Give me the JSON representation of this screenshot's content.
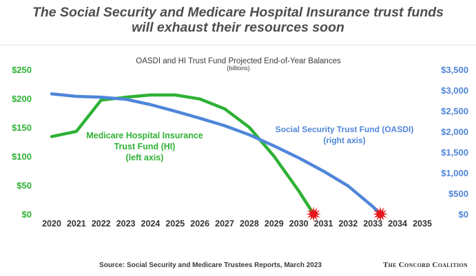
{
  "headline": {
    "line1": "The Social Security and Medicare Hospital Insurance trust funds",
    "line2": "will exhaust their resources soon"
  },
  "colors": {
    "hi": "#2eb135",
    "oasdi": "#4f86d9",
    "exhaustion_marker": "#e5171b",
    "text": "#3a3a3a"
  },
  "chart_data": {
    "type": "line",
    "title": "OASDI and HI Trust Fund Projected End-of-Year Balances",
    "subtitle": "(billions)",
    "x_ticks": [
      "2020",
      "2021",
      "2022",
      "2023",
      "2024",
      "2025",
      "2026",
      "2027",
      "2028",
      "2029",
      "2030",
      "2031",
      "2032",
      "2033",
      "2034",
      "2035"
    ],
    "xlim": [
      2020,
      2035
    ],
    "left_axis": {
      "ticks": [
        "$0",
        "$50",
        "$100",
        "$150",
        "$200",
        "$250"
      ],
      "ylim": [
        0,
        250
      ],
      "color": "#2eb135"
    },
    "right_axis": {
      "ticks": [
        "$0",
        "$500",
        "$1,000",
        "$1,500",
        "$2,000",
        "$2,500",
        "$3,000",
        "$3,500"
      ],
      "ylim": [
        0,
        3500
      ],
      "color": "#4f86d9"
    },
    "grid": false,
    "series": [
      {
        "name_lines": [
          "Medicare Hospital Insurance",
          "Trust Fund (HI)",
          "(left axis)"
        ],
        "axis": "left",
        "color": "#2eb135",
        "x": [
          2020,
          2021,
          2022,
          2023,
          2024,
          2025,
          2026,
          2027,
          2028,
          2029,
          2030,
          2030.6
        ],
        "y": [
          134,
          143,
          197,
          202,
          206,
          206,
          199,
          182,
          150,
          100,
          40,
          0
        ]
      },
      {
        "name_lines": [
          "Social Security Trust Fund (OASDI)",
          "(right axis)"
        ],
        "axis": "right",
        "color": "#4f86d9",
        "x": [
          2020,
          2021,
          2022,
          2023,
          2024,
          2025,
          2026,
          2027,
          2028,
          2029,
          2030,
          2031,
          2032,
          2033,
          2033.3
        ],
        "y": [
          2910,
          2850,
          2830,
          2780,
          2650,
          2490,
          2320,
          2140,
          1920,
          1650,
          1360,
          1040,
          680,
          180,
          0
        ]
      }
    ],
    "exhaustion_markers": [
      {
        "x": 2030.6,
        "series": "HI"
      },
      {
        "x": 2033.3,
        "series": "OASDI"
      }
    ]
  },
  "footer": {
    "source": "Source: Social Security and Medicare Trustees Reports, March 2023",
    "org": "The Concord Coalition"
  }
}
